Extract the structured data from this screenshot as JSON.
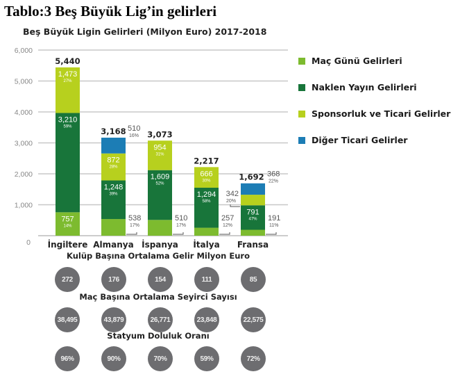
{
  "title": "Tablo:3 Beş Büyük Lig’in gelirleri",
  "chart_data": {
    "type": "bar",
    "stacked": true,
    "title": "Beş Büyük Ligin Gelirleri (Milyon Euro) 2017-2018",
    "categories": [
      "İngiltere",
      "Almanya",
      "İspanya",
      "İtalya",
      "Fransa"
    ],
    "totals": [
      "5,440",
      "3,168",
      "3,073",
      "2,217",
      "1,692"
    ],
    "ylim": [
      0,
      6000
    ],
    "yticks": [
      "0",
      "1,000",
      "2,000",
      "3,000",
      "4,000",
      "5,000",
      "6,000"
    ],
    "grid": true,
    "legend_position": "right",
    "series": [
      {
        "name": "Maç Günü Gelirleri",
        "color": "#7dbb2f",
        "values": [
          757,
          538,
          510,
          257,
          191
        ],
        "labels": [
          "757",
          "538",
          "510",
          "257",
          "191"
        ],
        "pcts": [
          "14%",
          "17%",
          "17%",
          "12%",
          "11%"
        ]
      },
      {
        "name": "Naklen Yayın Gelirleri",
        "color": "#18753a",
        "values": [
          3210,
          1248,
          1609,
          1294,
          791
        ],
        "labels": [
          "3,210",
          "1,248",
          "1,609",
          "1,294",
          "791"
        ],
        "pcts": [
          "59%",
          "39%",
          "52%",
          "58%",
          "47%"
        ]
      },
      {
        "name": "Sponsorluk ve Ticari Gelirler",
        "color": "#b7d01e",
        "values": [
          1473,
          872,
          954,
          666,
          342
        ],
        "labels": [
          "1,473",
          "872",
          "954",
          "666",
          "342"
        ],
        "pcts": [
          "27%",
          "28%",
          "31%",
          "30%",
          "20%"
        ]
      },
      {
        "name": "Diğer Ticari Gelirler",
        "color": "#1c7db5",
        "values": [
          0,
          510,
          0,
          0,
          368
        ],
        "labels": [
          "",
          "510",
          "",
          "",
          "368"
        ],
        "pcts": [
          "",
          "16%",
          "",
          "",
          "22%"
        ]
      }
    ]
  },
  "sections": [
    {
      "title": "Kulüp Başına Ortalama Gelir Milyon Euro",
      "values": [
        "272",
        "176",
        "154",
        "111",
        "85"
      ]
    },
    {
      "title": "Maç Başına Ortalama Seyirci Sayısı",
      "values": [
        "38,495",
        "43,879",
        "26,771",
        "23,848",
        "22,575"
      ]
    },
    {
      "title": "Statyum Doluluk Oranı",
      "values": [
        "96%",
        "90%",
        "70%",
        "59%",
        "72%"
      ]
    }
  ]
}
